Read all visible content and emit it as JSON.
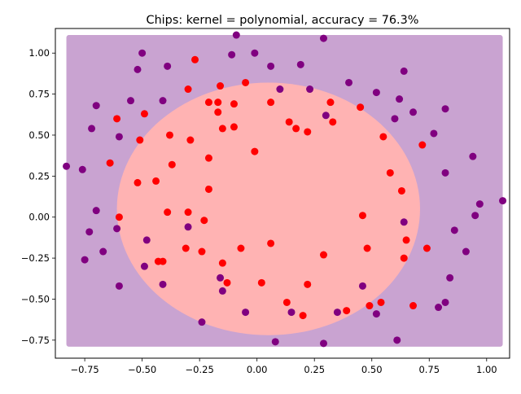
{
  "chart_data": {
    "type": "scatter",
    "title": "Chips: kernel = polynomial, accuracy = 76.3%",
    "xlabel": "",
    "ylabel": "",
    "xlim": [
      -0.878,
      1.1
    ],
    "ylim": [
      -0.86,
      1.15
    ],
    "xticks": [
      -0.75,
      -0.5,
      -0.25,
      0.0,
      0.25,
      0.5,
      0.75,
      1.0
    ],
    "xtick_labels": [
      "−0.75",
      "−0.50",
      "−0.25",
      "0.00",
      "0.25",
      "0.50",
      "0.75",
      "1.00"
    ],
    "yticks": [
      -0.75,
      -0.5,
      -0.25,
      0.0,
      0.25,
      0.5,
      0.75,
      1.0
    ],
    "ytick_labels": [
      "−0.75",
      "−0.50",
      "−0.25",
      "0.00",
      "0.25",
      "0.50",
      "0.75",
      "1.00"
    ],
    "grid": false,
    "legend": "none",
    "background_region": {
      "x_range": [
        -0.83,
        1.07
      ],
      "y_range": [
        -0.79,
        1.11
      ],
      "class_0_color": "#c9a3d1",
      "class_1_color": "#ffb3b3",
      "decision_ellipse": {
        "cx": 0.05,
        "cy": 0.05,
        "rx": 0.66,
        "ry": 0.77
      }
    },
    "series": [
      {
        "class": 0,
        "color": "#800080",
        "points": [
          [
            -0.83,
            0.31
          ],
          [
            -0.76,
            0.29
          ],
          [
            -0.75,
            -0.26
          ],
          [
            -0.73,
            -0.09
          ],
          [
            -0.72,
            0.54
          ],
          [
            -0.7,
            0.68
          ],
          [
            -0.7,
            0.04
          ],
          [
            -0.67,
            -0.21
          ],
          [
            -0.61,
            -0.07
          ],
          [
            -0.6,
            -0.42
          ],
          [
            -0.6,
            0.49
          ],
          [
            -0.55,
            0.71
          ],
          [
            -0.52,
            0.9
          ],
          [
            -0.5,
            1.0
          ],
          [
            -0.49,
            -0.3
          ],
          [
            -0.48,
            -0.14
          ],
          [
            -0.41,
            0.71
          ],
          [
            -0.41,
            -0.41
          ],
          [
            -0.39,
            0.92
          ],
          [
            -0.3,
            -0.06
          ],
          [
            -0.24,
            -0.64
          ],
          [
            -0.11,
            0.99
          ],
          [
            -0.09,
            1.11
          ],
          [
            -0.05,
            -0.58
          ],
          [
            -0.01,
            1.0
          ],
          [
            0.06,
            0.92
          ],
          [
            0.1,
            0.78
          ],
          [
            0.15,
            -0.58
          ],
          [
            0.19,
            0.93
          ],
          [
            0.23,
            0.78
          ],
          [
            0.29,
            1.09
          ],
          [
            0.3,
            0.62
          ],
          [
            0.35,
            -0.58
          ],
          [
            0.4,
            0.82
          ],
          [
            0.46,
            -0.42
          ],
          [
            0.52,
            0.76
          ],
          [
            0.52,
            -0.59
          ],
          [
            0.6,
            0.6
          ],
          [
            0.61,
            -0.75
          ],
          [
            0.62,
            0.72
          ],
          [
            0.64,
            0.89
          ],
          [
            0.64,
            -0.03
          ],
          [
            0.68,
            0.64
          ],
          [
            0.77,
            0.51
          ],
          [
            0.79,
            -0.55
          ],
          [
            0.82,
            0.66
          ],
          [
            0.82,
            0.27
          ],
          [
            0.82,
            -0.52
          ],
          [
            0.84,
            -0.37
          ],
          [
            0.86,
            -0.08
          ],
          [
            0.91,
            -0.21
          ],
          [
            0.94,
            0.37
          ],
          [
            0.95,
            0.01
          ],
          [
            0.97,
            0.08
          ],
          [
            1.07,
            0.1
          ],
          [
            0.08,
            -0.76
          ],
          [
            0.29,
            -0.77
          ],
          [
            -0.16,
            -0.37
          ],
          [
            -0.15,
            -0.45
          ]
        ]
      },
      {
        "class": 1,
        "color": "#ff0000",
        "points": [
          [
            -0.61,
            0.6
          ],
          [
            -0.6,
            0.0
          ],
          [
            -0.64,
            0.33
          ],
          [
            -0.51,
            0.47
          ],
          [
            -0.52,
            0.21
          ],
          [
            -0.49,
            0.63
          ],
          [
            -0.44,
            0.22
          ],
          [
            -0.43,
            -0.27
          ],
          [
            -0.41,
            -0.27
          ],
          [
            -0.39,
            0.03
          ],
          [
            -0.38,
            0.5
          ],
          [
            -0.37,
            0.32
          ],
          [
            -0.3,
            0.78
          ],
          [
            -0.3,
            0.03
          ],
          [
            -0.31,
            -0.19
          ],
          [
            -0.29,
            0.47
          ],
          [
            -0.27,
            0.96
          ],
          [
            -0.24,
            -0.21
          ],
          [
            -0.23,
            -0.02
          ],
          [
            -0.21,
            0.7
          ],
          [
            -0.21,
            0.36
          ],
          [
            -0.21,
            0.17
          ],
          [
            -0.17,
            0.7
          ],
          [
            -0.17,
            0.64
          ],
          [
            -0.16,
            0.8
          ],
          [
            -0.15,
            0.54
          ],
          [
            -0.15,
            -0.28
          ],
          [
            -0.13,
            -0.4
          ],
          [
            -0.1,
            0.69
          ],
          [
            -0.1,
            0.55
          ],
          [
            -0.07,
            -0.19
          ],
          [
            -0.05,
            0.82
          ],
          [
            -0.01,
            0.4
          ],
          [
            0.02,
            -0.4
          ],
          [
            0.06,
            0.7
          ],
          [
            0.06,
            -0.16
          ],
          [
            0.13,
            -0.52
          ],
          [
            0.14,
            0.58
          ],
          [
            0.17,
            0.54
          ],
          [
            0.2,
            -0.6
          ],
          [
            0.22,
            0.52
          ],
          [
            0.22,
            -0.41
          ],
          [
            0.29,
            -0.23
          ],
          [
            0.32,
            0.7
          ],
          [
            0.33,
            0.58
          ],
          [
            0.39,
            -0.57
          ],
          [
            0.45,
            0.67
          ],
          [
            0.46,
            0.01
          ],
          [
            0.48,
            -0.19
          ],
          [
            0.49,
            -0.54
          ],
          [
            0.54,
            -0.52
          ],
          [
            0.55,
            0.49
          ],
          [
            0.58,
            0.27
          ],
          [
            0.63,
            0.16
          ],
          [
            0.65,
            -0.14
          ],
          [
            0.64,
            -0.25
          ],
          [
            0.68,
            -0.54
          ],
          [
            0.72,
            0.44
          ],
          [
            0.74,
            -0.19
          ]
        ]
      }
    ]
  }
}
